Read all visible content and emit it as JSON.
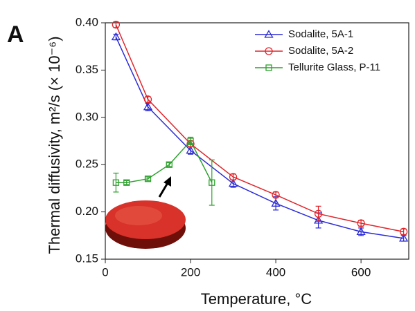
{
  "chart_data": {
    "type": "line",
    "panel_label": "A",
    "x_label": "Temperature, °C",
    "y_label": "Thermal diffusivity, m²/s  (× 10⁻⁶)",
    "xlim": [
      0,
      712
    ],
    "ylim": [
      0.15,
      0.4
    ],
    "xticks": [
      0,
      200,
      400,
      600
    ],
    "yticks": [
      0.15,
      {
        "value": 0.2,
        "label": "0.20"
      },
      0.25,
      {
        "value": 0.3,
        "label": "0.30"
      },
      0.35,
      {
        "value": 0.4,
        "label": "0.40"
      }
    ],
    "legend": "upper right",
    "series": [
      {
        "name": "Sodalite, 5A-1",
        "color": "#2b2bd6",
        "marker": "triangle",
        "x": [
          25,
          100,
          200,
          300,
          400,
          500,
          600,
          700
        ],
        "values": [
          0.385,
          0.311,
          0.265,
          0.23,
          0.209,
          0.191,
          0.179,
          0.172
        ],
        "errors": [
          0.003,
          0.004,
          0.004,
          0.004,
          0.007,
          0.008,
          0.004,
          0.003
        ]
      },
      {
        "name": "Sodalite, 5A-2",
        "color": "#e0242a",
        "marker": "circle",
        "x": [
          25,
          100,
          200,
          300,
          400,
          500,
          600,
          700
        ],
        "values": [
          0.398,
          0.319,
          0.272,
          0.237,
          0.218,
          0.198,
          0.188,
          0.179
        ],
        "errors": [
          0.003,
          0.003,
          0.003,
          0.003,
          0.003,
          0.008,
          0.003,
          0.003
        ]
      },
      {
        "name": "Tellurite Glass, P-11",
        "color": "#2ea02e",
        "marker": "square",
        "x": [
          25,
          50,
          100,
          150,
          200,
          250
        ],
        "values": [
          0.231,
          0.231,
          0.235,
          0.25,
          0.275,
          0.231
        ],
        "errors": [
          0.01,
          0.002,
          0.002,
          0.002,
          0.004,
          0.024
        ]
      }
    ]
  }
}
